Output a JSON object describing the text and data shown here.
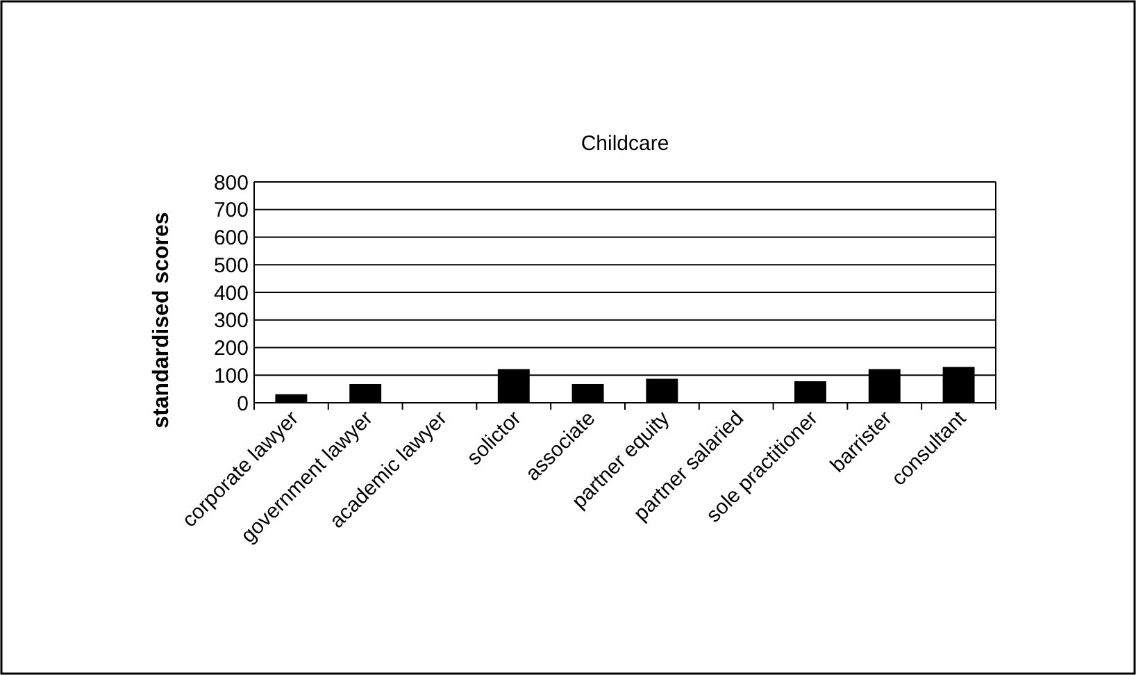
{
  "chart_data": {
    "type": "bar",
    "title": "Childcare",
    "ylabel": "standardised scores",
    "categories": [
      "corporate lawyer",
      "government lawyer",
      "academic lawyer",
      "solictor",
      "associate",
      "partner equity",
      "partner salaried",
      "sole practitioner",
      "barrister",
      "consultant"
    ],
    "values": [
      31,
      68,
      null,
      122,
      68,
      87,
      null,
      78,
      122,
      130
    ],
    "color": "#000000",
    "ylim": [
      0,
      800
    ],
    "yticks": [
      0,
      100,
      200,
      300,
      400,
      500,
      600,
      700,
      800
    ],
    "grid": "y"
  }
}
